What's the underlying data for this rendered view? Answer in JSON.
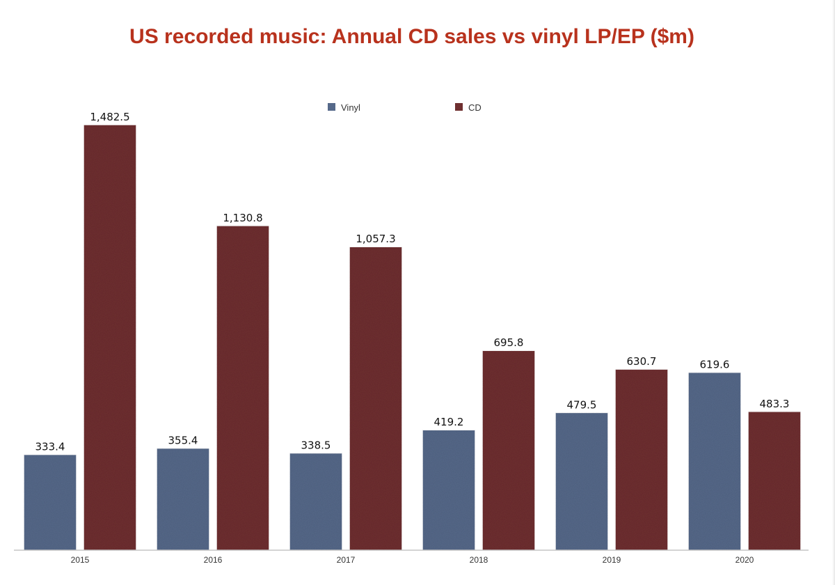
{
  "chart_data": {
    "type": "bar",
    "title": "US recorded music: Annual CD sales vs vinyl LP/EP ($m)",
    "xlabel": "",
    "ylabel": "",
    "categories": [
      "2015",
      "2016",
      "2017",
      "2018",
      "2019",
      "2020"
    ],
    "series": [
      {
        "name": "Vinyl",
        "color": "#56698a",
        "values": [
          333.4,
          355.4,
          338.5,
          419.2,
          479.5,
          619.6
        ],
        "labels": [
          "333.4",
          "355.4",
          "338.5",
          "419.2",
          "479.5",
          "619.6"
        ]
      },
      {
        "name": "CD",
        "color": "#6f2f30",
        "values": [
          1482.5,
          1130.8,
          1057.3,
          695.8,
          630.7,
          483.3
        ],
        "labels": [
          "1,482.5",
          "1,130.8",
          "1,057.3",
          "695.8",
          "630.7",
          "483.3"
        ]
      }
    ],
    "ylim": [
      0,
      1600
    ],
    "grid": false,
    "legend": "top-center"
  }
}
